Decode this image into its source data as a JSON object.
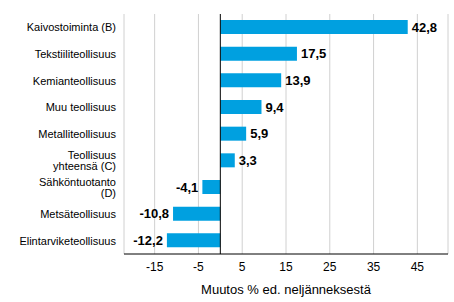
{
  "chart_data": {
    "type": "bar",
    "orientation": "horizontal",
    "x_label": "Muutos % ed. neljänneksestä",
    "categories": [
      "Kaivostoiminta (B)",
      "Tekstiiliteollisuus",
      "Kemianteollisuus",
      "Muu teollisuus",
      "Metalliteollisuus",
      "Teollisuus yhteensä (C)",
      "Sähköntuotanto (D)",
      "Metsäteollisuus",
      "Elintarviketeollisuus"
    ],
    "values": [
      42.8,
      17.5,
      13.9,
      9.4,
      5.9,
      3.3,
      -4.1,
      -10.8,
      -12.2
    ],
    "value_labels": [
      "42,8",
      "17,5",
      "13,9",
      "9,4",
      "5,9",
      "3,3",
      "-4,1",
      "-10,8",
      "-12,2"
    ],
    "color": "#00a0e0",
    "xlim": [
      -22,
      52
    ],
    "xticks": [
      -15,
      -5,
      5,
      15,
      25,
      35,
      45
    ],
    "grid": true,
    "data_labels": true
  }
}
